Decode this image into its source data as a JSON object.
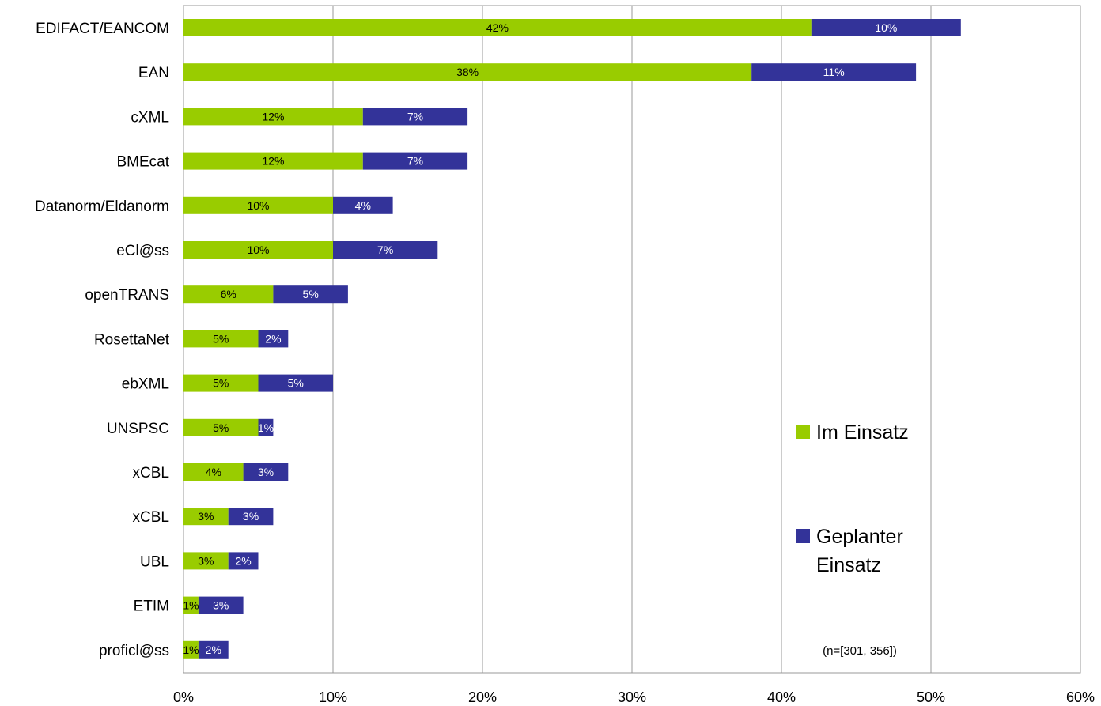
{
  "chart_data": {
    "type": "bar",
    "orientation": "horizontal",
    "stacked": true,
    "categories": [
      "EDIFACT/EANCOM",
      "EAN",
      "cXML",
      "BMEcat",
      "Datanorm/Eldanorm",
      "eCl@ss",
      "openTRANS",
      "RosettaNet",
      "ebXML",
      "UNSPSC",
      "xCBL",
      "xCBL",
      "UBL",
      "ETIM",
      "proficl@ss"
    ],
    "series": [
      {
        "name": "Im Einsatz",
        "color": "#99cc00",
        "label_color": "#000000",
        "values": [
          42,
          38,
          12,
          12,
          10,
          10,
          6,
          5,
          5,
          5,
          4,
          3,
          3,
          1,
          1
        ],
        "labels": [
          "42%",
          "38%",
          "12%",
          "12%",
          "10%",
          "10%",
          "6%",
          "5%",
          "5%",
          "5%",
          "4%",
          "3%",
          "3%",
          "1%",
          "1%"
        ]
      },
      {
        "name": "Geplanter Einsatz",
        "color": "#333399",
        "label_color": "#ffffff",
        "values": [
          10,
          11,
          7,
          7,
          4,
          7,
          5,
          2,
          5,
          1,
          3,
          3,
          2,
          3,
          2
        ],
        "labels": [
          "10%",
          "11%",
          "7%",
          "7%",
          "4%",
          "7%",
          "5%",
          "2%",
          "5%",
          "1%",
          "3%",
          "3%",
          "2%",
          "3%",
          "2%"
        ]
      }
    ],
    "xlim": [
      0,
      60
    ],
    "x_ticks": [
      0,
      10,
      20,
      30,
      40,
      50,
      60
    ],
    "x_tick_labels": [
      "0%",
      "10%",
      "20%",
      "30%",
      "40%",
      "50%",
      "60%"
    ],
    "grid": true,
    "gridline_color": "#999999",
    "legend_position": "right",
    "legend": [
      {
        "lines": [
          "Im Einsatz"
        ],
        "color": "#99cc00"
      },
      {
        "lines": [
          "Geplanter",
          "Einsatz"
        ],
        "color": "#333399"
      }
    ],
    "annotation": "(n=[301, 356])",
    "title": "",
    "xlabel": "",
    "ylabel": ""
  }
}
